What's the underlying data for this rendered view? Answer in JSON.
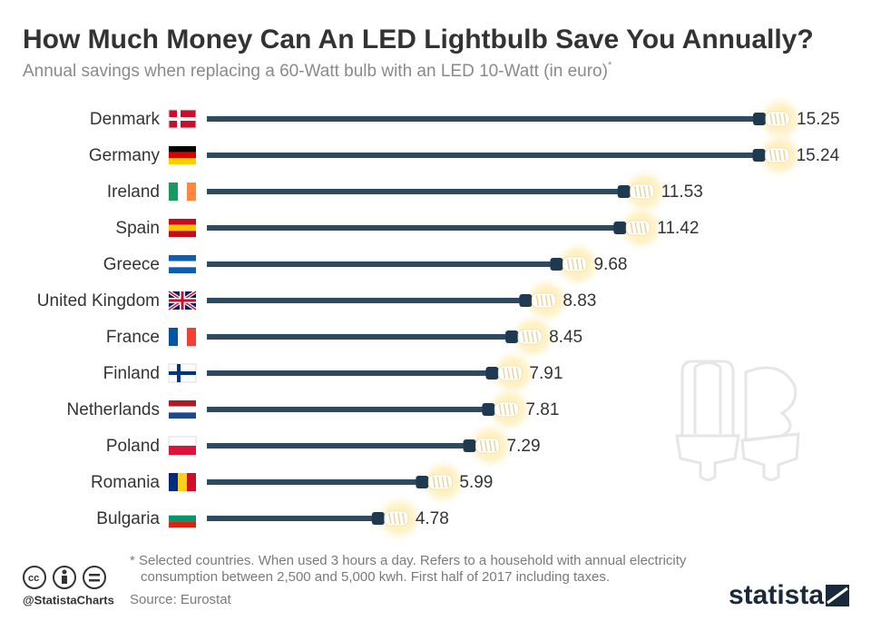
{
  "chart_data": {
    "type": "bar",
    "orientation": "horizontal",
    "title": "How Much Money Can An LED Lightbulb Save You Annually?",
    "subtitle": "Annual savings when replacing a 60-Watt bulb with an LED 10-Watt (in euro)",
    "subtitle_note": "*",
    "categories": [
      "Denmark",
      "Germany",
      "Ireland",
      "Spain",
      "Greece",
      "United Kingdom",
      "France",
      "Finland",
      "Netherlands",
      "Poland",
      "Romania",
      "Bulgaria"
    ],
    "values": [
      15.25,
      15.24,
      11.53,
      11.42,
      9.68,
      8.83,
      8.45,
      7.91,
      7.81,
      7.29,
      5.99,
      4.78
    ],
    "color": "#2e4a62",
    "footnote": [
      "* Selected countries. When used 3 hours a day. Refers to a household with annual electricity",
      "consumption between 2,500 and 5,000 kwh. First half of 2017 including taxes."
    ],
    "source": "Source: Eurostat",
    "handle": "@StatistaCharts",
    "brand": "statista"
  }
}
